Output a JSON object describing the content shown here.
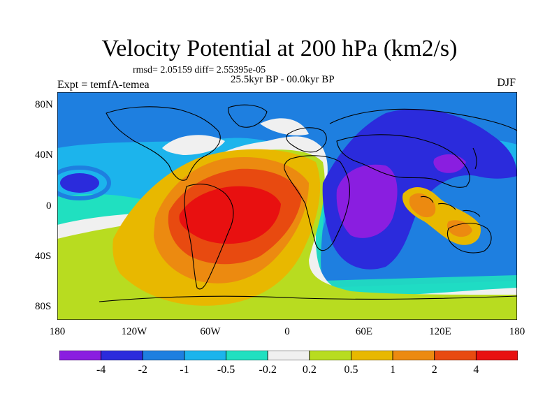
{
  "title": "Velocity Potential at 200 hPa (km2/s)",
  "stats": "rmsd= 2.05159 diff= 2.55395e-05",
  "subtitle": "25.5kyr BP - 00.0kyr BP",
  "left_label": "Expt = temfA-temea",
  "right_label": "DJF",
  "lat_ticks": [
    "80N",
    "40N",
    "0",
    "40S",
    "80S"
  ],
  "lon_ticks": [
    "180",
    "120W",
    "60W",
    "0",
    "60E",
    "120E",
    "180"
  ],
  "colorbar": {
    "labels": [
      "-4",
      "-2",
      "-1",
      "-0.5",
      "-0.2",
      "0.2",
      "0.5",
      "1",
      "2",
      "4"
    ],
    "colors": [
      "#8a1ee0",
      "#2b2bdc",
      "#1e7fe0",
      "#1cb4ec",
      "#20e0c0",
      "#f0f0f0",
      "#b8dc20",
      "#e8b800",
      "#ec8a10",
      "#e84a10",
      "#e81010"
    ]
  }
}
